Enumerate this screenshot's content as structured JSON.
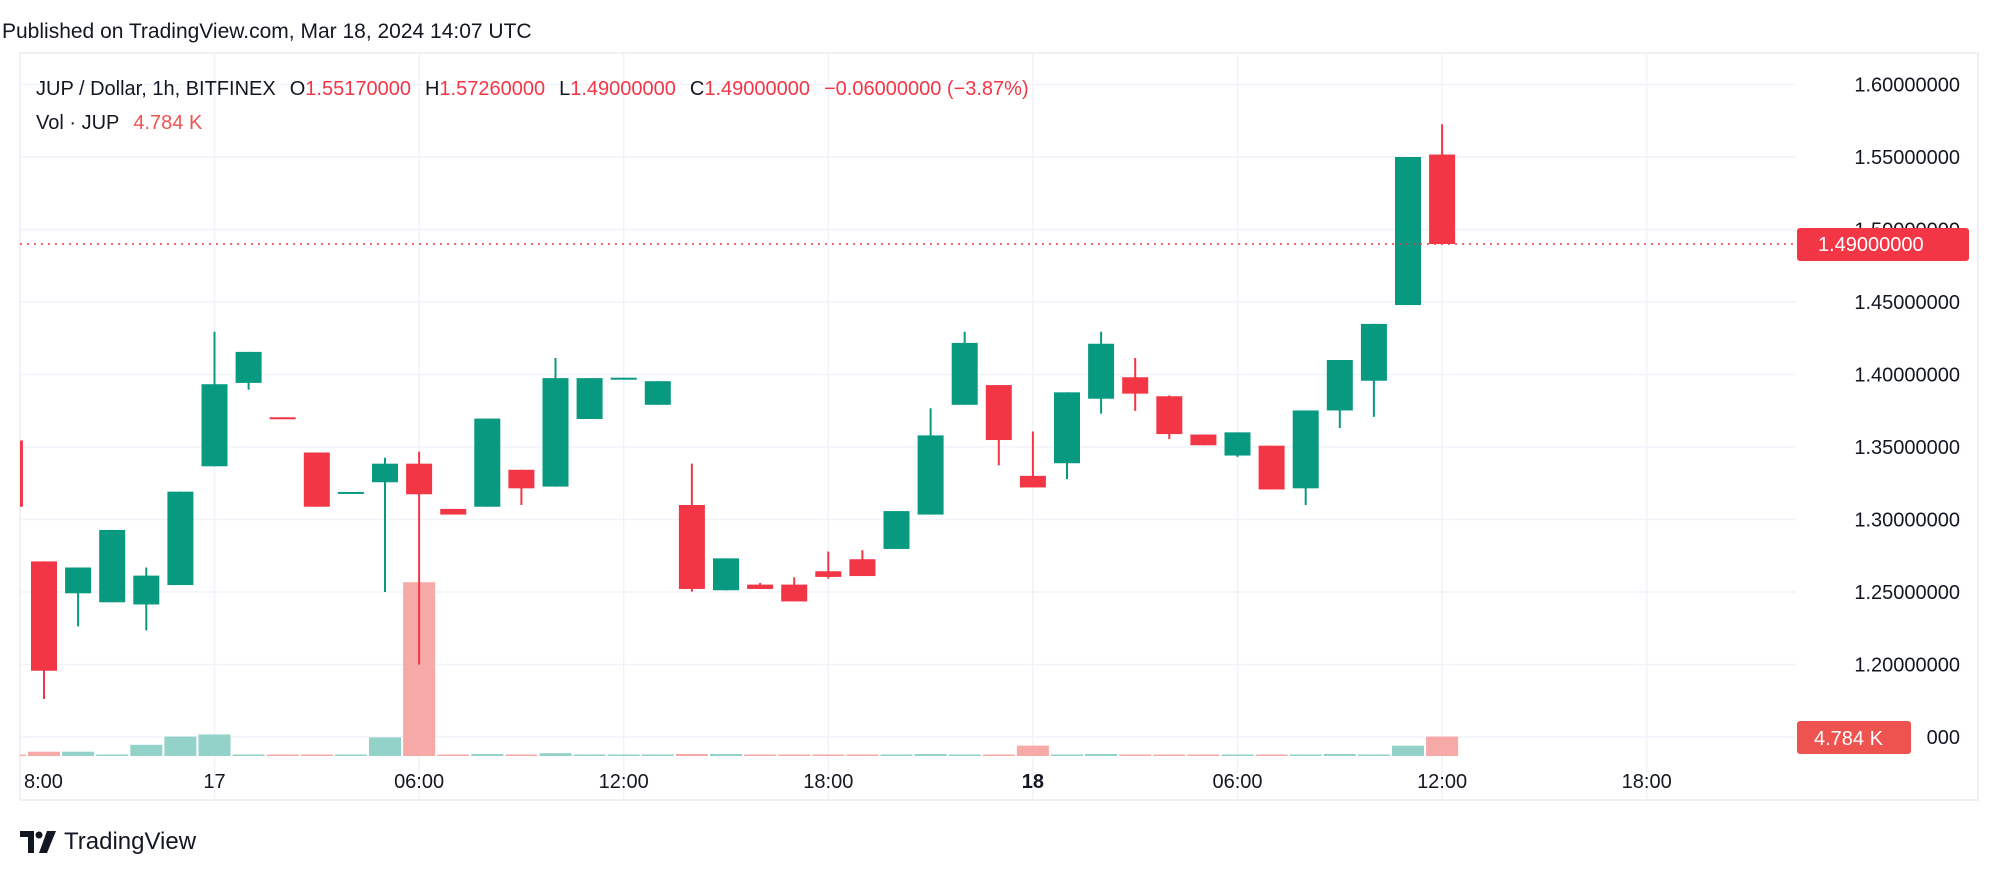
{
  "header": {
    "published": "Published on TradingView.com, Mar 18, 2024 14:07 UTC"
  },
  "legend": {
    "symbol": "JUP / Dollar, 1h, BITFINEX",
    "open_label": "O",
    "open": "1.55170000",
    "high_label": "H",
    "high": "1.57260000",
    "low_label": "L",
    "low": "1.49000000",
    "close_label": "C",
    "close": "1.49000000",
    "change": "−0.06000000 (−3.87%)",
    "volume_label": "Vol · JUP",
    "volume": "4.784 K"
  },
  "price_axis": {
    "labels": [
      "1.60000000",
      "1.55000000",
      "1.50000000",
      "1.45000000",
      "1.40000000",
      "1.35000000",
      "1.30000000",
      "1.25000000",
      "1.20000000",
      "000"
    ],
    "last_price": "1.49000000",
    "last_volume": "4.784 K"
  },
  "footer": {
    "brand": "TradingView"
  },
  "colors": {
    "up": "#089981",
    "down": "#f23645",
    "up_volume": "#92d2c9",
    "down_volume": "#f7a9a7",
    "grid": "#f0f3fa"
  },
  "chart_data": {
    "type": "candlestick",
    "symbol": "JUP / Dollar",
    "interval": "1h",
    "ylim": [
      1.15,
      1.6
    ],
    "y_ticks": [
      1.2,
      1.25,
      1.3,
      1.35,
      1.4,
      1.45,
      1.5,
      1.55,
      1.6
    ],
    "grid": true,
    "x_tick_labels": [
      {
        "label": "8:00",
        "time": "2024-03-16 18:00"
      },
      {
        "label": "17",
        "time": "2024-03-17 00:00",
        "bold": false
      },
      {
        "label": "06:00",
        "time": "2024-03-17 06:00"
      },
      {
        "label": "12:00",
        "time": "2024-03-17 12:00"
      },
      {
        "label": "18:00",
        "time": "2024-03-17 18:00"
      },
      {
        "label": "18",
        "time": "2024-03-18 00:00",
        "bold": true
      },
      {
        "label": "06:00",
        "time": "2024-03-18 06:00"
      },
      {
        "label": "12:00",
        "time": "2024-03-18 12:00"
      },
      {
        "label": "18:00",
        "time": "2024-03-18 18:00"
      }
    ],
    "volume_unit": "K",
    "candles": [
      {
        "t": "2024-03-16 18:00",
        "o": 1.3545,
        "h": 1.3545,
        "l": 1.3088,
        "c": 1.3088,
        "v": 0.3
      },
      {
        "t": "2024-03-16 19:00",
        "o": 1.2711,
        "h": 1.2711,
        "l": 1.1762,
        "c": 1.1957,
        "v": 1.06
      },
      {
        "t": "2024-03-16 20:00",
        "o": 1.2491,
        "h": 1.2669,
        "l": 1.2263,
        "c": 1.2669,
        "v": 1.06
      },
      {
        "t": "2024-03-16 21:00",
        "o": 1.2429,
        "h": 1.2928,
        "l": 1.2429,
        "c": 1.2928,
        "v": 0.3
      },
      {
        "t": "2024-03-16 22:00",
        "o": 1.2414,
        "h": 1.2669,
        "l": 1.2236,
        "c": 1.2613,
        "v": 2.76
      },
      {
        "t": "2024-03-16 23:00",
        "o": 1.2548,
        "h": 1.3192,
        "l": 1.2548,
        "c": 1.3192,
        "v": 4.78
      },
      {
        "t": "2024-03-17 00:00",
        "o": 1.3367,
        "h": 1.4295,
        "l": 1.3367,
        "c": 1.3933,
        "v": 5.3
      },
      {
        "t": "2024-03-17 01:00",
        "o": 1.3942,
        "h": 1.4156,
        "l": 1.3895,
        "c": 1.4156,
        "v": 0.3
      },
      {
        "t": "2024-03-17 02:00",
        "o": 1.3705,
        "h": 1.3705,
        "l": 1.3695,
        "c": 1.3695,
        "v": 0.3
      },
      {
        "t": "2024-03-17 03:00",
        "o": 1.3462,
        "h": 1.3462,
        "l": 1.3088,
        "c": 1.3088,
        "v": 0.3
      },
      {
        "t": "2024-03-17 04:00",
        "o": 1.3182,
        "h": 1.319,
        "l": 1.3182,
        "c": 1.319,
        "v": 0.3
      },
      {
        "t": "2024-03-17 05:00",
        "o": 1.3257,
        "h": 1.3426,
        "l": 1.25,
        "c": 1.3385,
        "v": 4.57
      },
      {
        "t": "2024-03-17 06:00",
        "o": 1.3385,
        "h": 1.3468,
        "l": 1.2,
        "c": 1.3174,
        "v": 42.8
      },
      {
        "t": "2024-03-17 07:00",
        "o": 1.3073,
        "h": 1.3073,
        "l": 1.3034,
        "c": 1.3034,
        "v": 0.3
      },
      {
        "t": "2024-03-17 08:00",
        "o": 1.3088,
        "h": 1.3696,
        "l": 1.3088,
        "c": 1.3696,
        "v": 0.5
      },
      {
        "t": "2024-03-17 09:00",
        "o": 1.3343,
        "h": 1.3343,
        "l": 1.31,
        "c": 1.3215,
        "v": 0.3
      },
      {
        "t": "2024-03-17 10:00",
        "o": 1.3227,
        "h": 1.4114,
        "l": 1.3227,
        "c": 1.3975,
        "v": 0.7
      },
      {
        "t": "2024-03-17 11:00",
        "o": 1.3693,
        "h": 1.3975,
        "l": 1.3693,
        "c": 1.3975,
        "v": 0.3
      },
      {
        "t": "2024-03-17 12:00",
        "o": 1.3975,
        "h": 1.3978,
        "l": 1.3975,
        "c": 1.3978,
        "v": 0.3
      },
      {
        "t": "2024-03-17 13:00",
        "o": 1.3791,
        "h": 1.3954,
        "l": 1.3791,
        "c": 1.3954,
        "v": 0.3
      },
      {
        "t": "2024-03-17 14:00",
        "o": 1.31,
        "h": 1.3385,
        "l": 1.2503,
        "c": 1.2521,
        "v": 0.5
      },
      {
        "t": "2024-03-17 15:00",
        "o": 1.2512,
        "h": 1.2732,
        "l": 1.2512,
        "c": 1.2732,
        "v": 0.5
      },
      {
        "t": "2024-03-17 16:00",
        "o": 1.2551,
        "h": 1.2563,
        "l": 1.2521,
        "c": 1.2521,
        "v": 0.3
      },
      {
        "t": "2024-03-17 17:00",
        "o": 1.2551,
        "h": 1.2601,
        "l": 1.2435,
        "c": 1.2435,
        "v": 0.3
      },
      {
        "t": "2024-03-17 18:00",
        "o": 1.2643,
        "h": 1.2779,
        "l": 1.2592,
        "c": 1.2604,
        "v": 0.3
      },
      {
        "t": "2024-03-17 19:00",
        "o": 1.2726,
        "h": 1.2788,
        "l": 1.261,
        "c": 1.261,
        "v": 0.3
      },
      {
        "t": "2024-03-17 20:00",
        "o": 1.2797,
        "h": 1.3058,
        "l": 1.2797,
        "c": 1.3058,
        "v": 0.3
      },
      {
        "t": "2024-03-17 21:00",
        "o": 1.3034,
        "h": 1.3767,
        "l": 1.3034,
        "c": 1.358,
        "v": 0.5
      },
      {
        "t": "2024-03-17 22:00",
        "o": 1.3791,
        "h": 1.4295,
        "l": 1.3791,
        "c": 1.4218,
        "v": 0.3
      },
      {
        "t": "2024-03-17 23:00",
        "o": 1.3927,
        "h": 1.3927,
        "l": 1.3373,
        "c": 1.3548,
        "v": 0.3
      },
      {
        "t": "2024-03-18 00:00",
        "o": 1.3301,
        "h": 1.3607,
        "l": 1.3221,
        "c": 1.3221,
        "v": 2.55
      },
      {
        "t": "2024-03-18 01:00",
        "o": 1.3388,
        "h": 1.3877,
        "l": 1.3278,
        "c": 1.3877,
        "v": 0.3
      },
      {
        "t": "2024-03-18 02:00",
        "o": 1.3833,
        "h": 1.4295,
        "l": 1.3729,
        "c": 1.4212,
        "v": 0.5
      },
      {
        "t": "2024-03-18 03:00",
        "o": 1.3981,
        "h": 1.4114,
        "l": 1.3749,
        "c": 1.3868,
        "v": 0.3
      },
      {
        "t": "2024-03-18 04:00",
        "o": 1.385,
        "h": 1.3856,
        "l": 1.3554,
        "c": 1.3589,
        "v": 0.3
      },
      {
        "t": "2024-03-18 05:00",
        "o": 1.3586,
        "h": 1.3586,
        "l": 1.3512,
        "c": 1.3512,
        "v": 0.3
      },
      {
        "t": "2024-03-18 06:00",
        "o": 1.3441,
        "h": 1.3601,
        "l": 1.3432,
        "c": 1.3601,
        "v": 0.3
      },
      {
        "t": "2024-03-18 07:00",
        "o": 1.3509,
        "h": 1.3509,
        "l": 1.3207,
        "c": 1.3207,
        "v": 0.3
      },
      {
        "t": "2024-03-18 08:00",
        "o": 1.3215,
        "h": 1.3752,
        "l": 1.31,
        "c": 1.3752,
        "v": 0.3
      },
      {
        "t": "2024-03-18 09:00",
        "o": 1.3752,
        "h": 1.41,
        "l": 1.3631,
        "c": 1.41,
        "v": 0.5
      },
      {
        "t": "2024-03-18 10:00",
        "o": 1.3957,
        "h": 1.4349,
        "l": 1.3708,
        "c": 1.4349,
        "v": 0.3
      },
      {
        "t": "2024-03-18 11:00",
        "o": 1.4479,
        "h": 1.55,
        "l": 1.4479,
        "c": 1.55,
        "v": 2.55
      },
      {
        "t": "2024-03-18 12:00",
        "o": 1.5517,
        "h": 1.5726,
        "l": 1.49,
        "c": 1.49,
        "v": 4.784
      }
    ],
    "last_price": 1.49
  }
}
